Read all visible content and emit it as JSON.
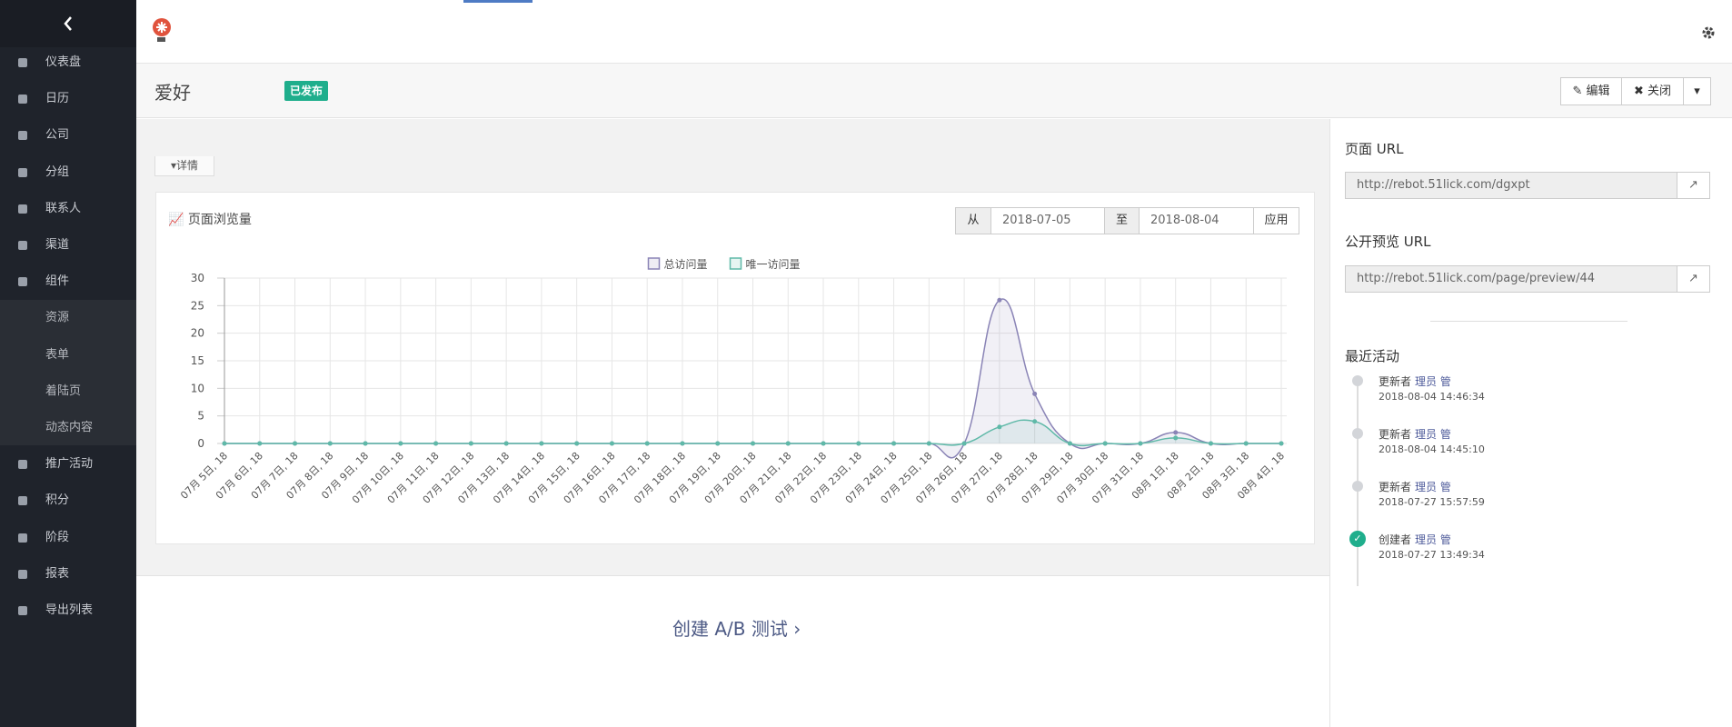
{
  "sidebar": {
    "items_top": [
      "仪表盘",
      "日历",
      "公司",
      "分组",
      "联系人",
      "渠道",
      "组件"
    ],
    "sub_items": [
      "资源",
      "表单",
      "着陆页",
      "动态内容"
    ],
    "items_bottom": [
      "推广活动",
      "积分",
      "阶段",
      "报表",
      "导出列表"
    ]
  },
  "header": {
    "title": "爱好",
    "status": "已发布",
    "buttons": [
      "编辑",
      "关闭"
    ]
  },
  "details_tab": "详情",
  "filter": {
    "from_label": "从",
    "from": "2018-07-05",
    "to_label": "至",
    "to": "2018-08-04",
    "apply": "应用"
  },
  "chart_data": {
    "type": "line",
    "title": "页面浏览量",
    "categories": [
      "07月 5日, 18",
      "07月 6日, 18",
      "07月 7日, 18",
      "07月 8日, 18",
      "07月 9日, 18",
      "07月 10日, 18",
      "07月 11日, 18",
      "07月 12日, 18",
      "07月 13日, 18",
      "07月 14日, 18",
      "07月 15日, 18",
      "07月 16日, 18",
      "07月 17日, 18",
      "07月 18日, 18",
      "07月 19日, 18",
      "07月 20日, 18",
      "07月 21日, 18",
      "07月 22日, 18",
      "07月 23日, 18",
      "07月 24日, 18",
      "07月 25日, 18",
      "07月 26日, 18",
      "07月 27日, 18",
      "07月 28日, 18",
      "07月 29日, 18",
      "07月 30日, 18",
      "07月 31日, 18",
      "08月 1日, 18",
      "08月 2日, 18",
      "08月 3日, 18",
      "08月 4日, 18"
    ],
    "series": [
      {
        "name": "总访问量",
        "color": "#8a84b6",
        "values": [
          0,
          0,
          0,
          0,
          0,
          0,
          0,
          0,
          0,
          0,
          0,
          0,
          0,
          0,
          0,
          0,
          0,
          0,
          0,
          0,
          0,
          0,
          26,
          9,
          0,
          0,
          0,
          2,
          0,
          0,
          0
        ]
      },
      {
        "name": "唯一访问量",
        "color": "#5fb9a8",
        "values": [
          0,
          0,
          0,
          0,
          0,
          0,
          0,
          0,
          0,
          0,
          0,
          0,
          0,
          0,
          0,
          0,
          0,
          0,
          0,
          0,
          0,
          0,
          3,
          4,
          0,
          0,
          0,
          1,
          0,
          0,
          0
        ]
      }
    ],
    "ylim": [
      0,
      30
    ],
    "yticks": [
      0,
      5,
      10,
      15,
      20,
      25,
      30
    ],
    "grid": true,
    "legend": "top"
  },
  "ab_test": "创建 A/B 测试",
  "right_panel": {
    "page_url_label": "页面 URL",
    "page_url": "http://rebot.51lick.com/dgxpt",
    "preview_url_label": "公开预览 URL",
    "preview_url": "http://rebot.51lick.com/page/preview/44",
    "activity_title": "最近活动",
    "activities": [
      {
        "action": "更新者",
        "user": "理员 管",
        "time": "2018-08-04 14:46:34"
      },
      {
        "action": "更新者",
        "user": "理员 管",
        "time": "2018-08-04 14:45:10"
      },
      {
        "action": "更新者",
        "user": "理员 管",
        "time": "2018-07-27 15:57:59"
      },
      {
        "action": "创建者",
        "user": "理员 管",
        "time": "2018-07-27 13:49:34"
      }
    ]
  }
}
